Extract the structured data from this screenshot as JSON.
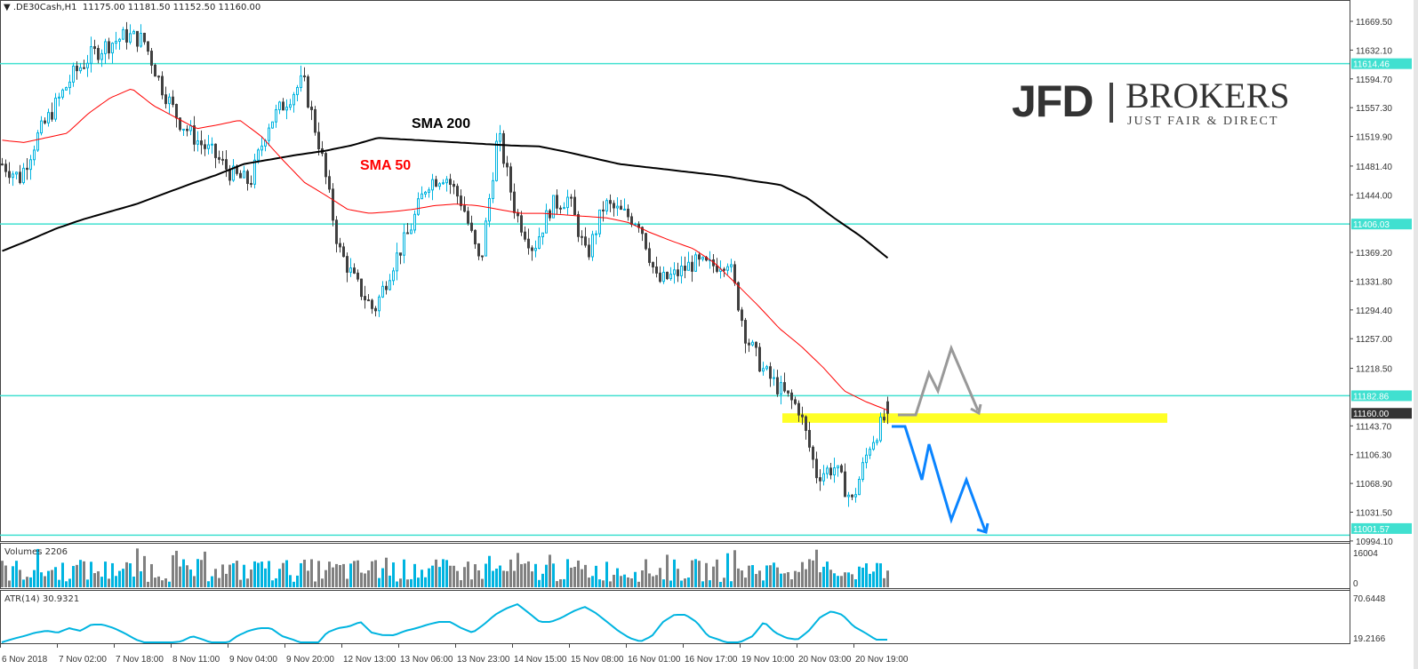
{
  "header": {
    "symbol_icon": "triangle-down-icon",
    "symbol": ".DE30Cash,H1",
    "ohlc": "11175.00 11181.50 11152.50 11160.00"
  },
  "logo": {
    "brand": "JFD",
    "name": "BROKERS",
    "tagline": "JUST FAIR & DIRECT"
  },
  "annotations": {
    "sma200": "SMA 200",
    "sma50": "SMA 50"
  },
  "colors": {
    "bull": "#00b4e0",
    "bear": "#404040",
    "level": "#40e0d0",
    "sma50": "#ff0000",
    "sma200": "#000000",
    "zone": "#ffff00",
    "arrow_up": "#999999",
    "arrow_down": "#0a84ff"
  },
  "volumes": {
    "label": "Volumes 2206",
    "ticks": [
      "16004",
      "0"
    ]
  },
  "atr": {
    "label": "ATR(14) 30.9321",
    "ticks": [
      "70.6448",
      "19.2166"
    ]
  },
  "chart_data": {
    "type": "candlestick",
    "price_ticks": [
      "11669.50",
      "11632.10",
      "11594.70",
      "11557.30",
      "11519.90",
      "11481.40",
      "11444.00",
      "11369.20",
      "11331.80",
      "11294.40",
      "11257.00",
      "11218.50",
      "11143.70",
      "11106.30",
      "11068.90",
      "11031.50",
      "10994.10"
    ],
    "ylim": [
      10994.1,
      11669.5
    ],
    "levels": [
      "11614.46",
      "11406.03",
      "11182.86",
      "11001.57"
    ],
    "current_price": "11160.00",
    "zone": [
      11150,
      11160
    ],
    "time_labels": [
      "6 Nov 2018",
      "7 Nov 02:00",
      "7 Nov 18:00",
      "8 Nov 11:00",
      "9 Nov 04:00",
      "9 Nov 20:00",
      "12 Nov 13:00",
      "13 Nov 06:00",
      "13 Nov 23:00",
      "14 Nov 15:00",
      "15 Nov 08:00",
      "16 Nov 01:00",
      "16 Nov 17:00",
      "19 Nov 10:00",
      "20 Nov 03:00",
      "20 Nov 19:00"
    ],
    "close_path": [
      11484,
      11466,
      11520,
      11560,
      11600,
      11625,
      11640,
      11651,
      11645,
      11585,
      11540,
      11515,
      11495,
      11470,
      11460,
      11535,
      11565,
      11593,
      11500,
      11374,
      11328,
      11293,
      11351,
      11397,
      11460,
      11470,
      11432,
      11351,
      11524,
      11420,
      11374,
      11430,
      11440,
      11362,
      11432,
      11420,
      11409,
      11330,
      11340,
      11355,
      11351,
      11360,
      11260,
      11215,
      11189,
      11166,
      11080,
      11090,
      11045,
      11120,
      11160
    ],
    "sma50_path": [
      11515,
      11512,
      11518,
      11524,
      11550,
      11570,
      11582,
      11560,
      11545,
      11530,
      11535,
      11541,
      11520,
      11489,
      11460,
      11443,
      11425,
      11420,
      11422,
      11425,
      11430,
      11432,
      11430,
      11425,
      11420,
      11420,
      11418,
      11416,
      11414,
      11408,
      11395,
      11384,
      11374,
      11355,
      11328,
      11300,
      11270,
      11247,
      11220,
      11189,
      11175,
      11164
    ],
    "sma200_path": [
      11371,
      11385,
      11400,
      11412,
      11422,
      11432,
      11445,
      11458,
      11470,
      11484,
      11490,
      11496,
      11501,
      11508,
      11518,
      11516,
      11514,
      11512,
      11510,
      11508,
      11507,
      11500,
      11492,
      11484,
      11480,
      11476,
      11472,
      11468,
      11462,
      11457,
      11440,
      11414,
      11390,
      11362
    ],
    "atr_values": [
      18.3,
      22,
      25,
      28.7,
      30.6,
      28.7,
      33.5,
      30.6,
      37.3,
      37.3,
      33.5,
      27.8,
      21.1,
      17,
      15.4,
      18,
      19.2,
      25,
      21.1,
      16.4,
      16.4,
      25,
      30.6,
      33.5,
      33.5,
      25,
      21.1,
      16.4,
      14.5,
      28.7,
      33.5,
      35.4,
      40.2,
      28.7,
      26,
      25.9,
      30.6,
      33.5,
      37.3,
      40.2,
      40.2,
      33.5,
      28.7,
      37.3,
      47.8,
      54.5,
      59.2,
      50,
      40.2,
      40.2,
      45,
      51.6,
      56.4,
      49.7,
      40.2,
      30.6,
      23,
      19.2,
      25,
      40.2,
      47.8,
      47.8,
      40,
      25,
      21.1,
      16.4,
      19.2,
      25,
      40.2,
      28.7,
      23,
      21.1,
      30.6,
      45,
      51.6,
      47.8,
      35.4,
      28.7,
      21.1,
      21.1
    ]
  }
}
